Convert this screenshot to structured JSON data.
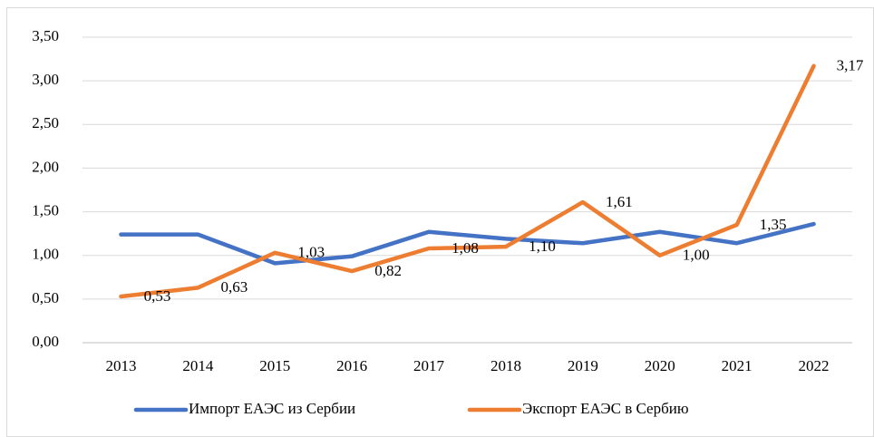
{
  "chart_data": {
    "type": "line",
    "categories": [
      "2013",
      "2014",
      "2015",
      "2016",
      "2017",
      "2018",
      "2019",
      "2020",
      "2021",
      "2022"
    ],
    "series": [
      {
        "name": "Импорт ЕАЭС из Сербии",
        "color": "#4472c4",
        "values": [
          1.24,
          1.24,
          0.91,
          0.99,
          1.27,
          1.19,
          1.14,
          1.27,
          1.14,
          1.36
        ]
      },
      {
        "name": "Экспорт ЕАЭС в Сербию",
        "color": "#ed7d31",
        "values": [
          0.53,
          0.63,
          1.03,
          0.82,
          1.08,
          1.1,
          1.61,
          1.0,
          1.35,
          3.17
        ],
        "value_labels": [
          "0,53",
          "0,63",
          "1,03",
          "0,82",
          "1,08",
          "1,10",
          "1,61",
          "1,00",
          "1,35",
          "3,17"
        ]
      }
    ],
    "ylim": [
      0,
      3.5
    ],
    "yticks": [
      {
        "value": 0,
        "label": "0,00"
      },
      {
        "value": 0.5,
        "label": "0,50"
      },
      {
        "value": 1,
        "label": "1,00"
      },
      {
        "value": 1.5,
        "label": "1,50"
      },
      {
        "value": 2,
        "label": "2,00"
      },
      {
        "value": 2.5,
        "label": "2,50"
      },
      {
        "value": 3,
        "label": "3,00"
      },
      {
        "value": 3.5,
        "label": "3,50"
      }
    ],
    "grid": true,
    "legend": "bottom"
  }
}
